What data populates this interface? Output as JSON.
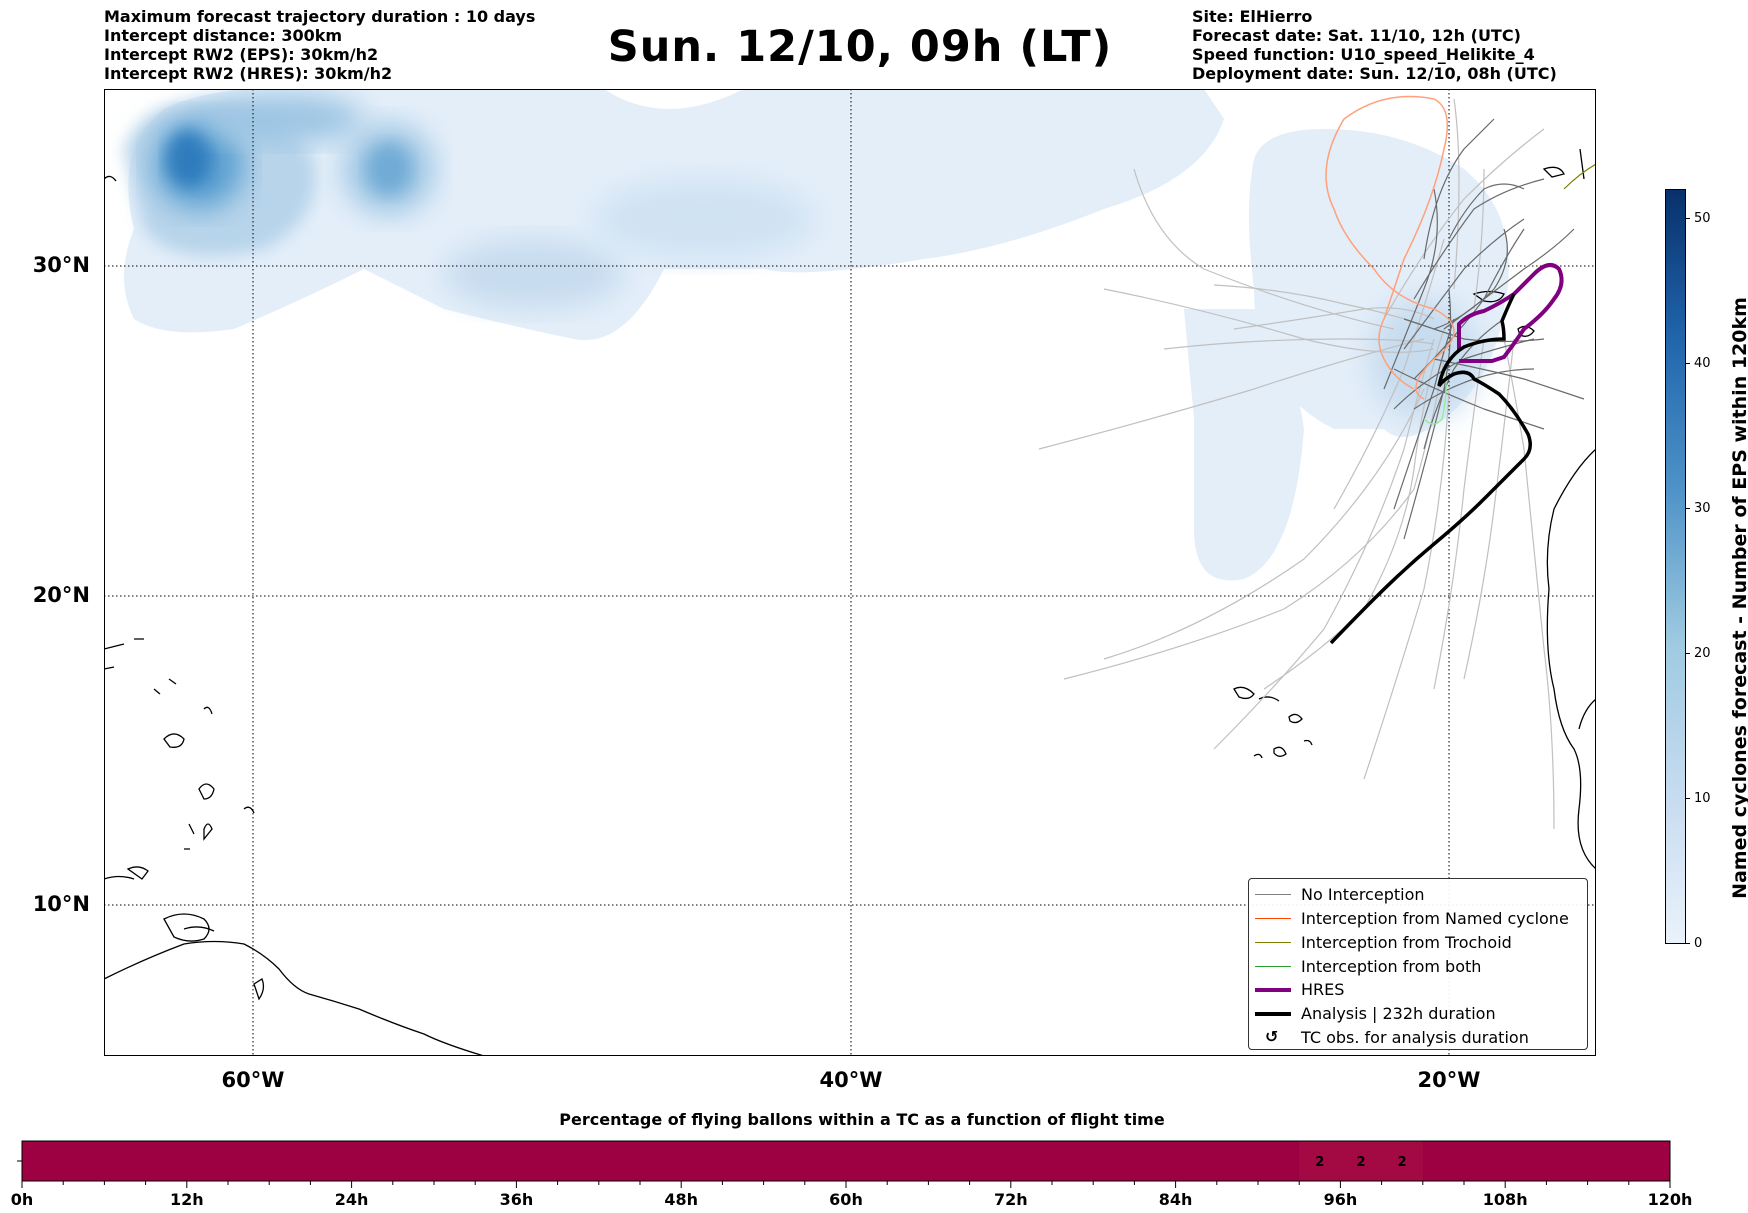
{
  "header_left": {
    "line1": "Maximum forecast trajectory duration : 10 days",
    "line2": "Intercept distance: 300km",
    "line3": "Intercept RW2 (EPS):  30km/h2",
    "line4": "Intercept RW2 (HRES): 30km/h2"
  },
  "title": "Sun. 12/10, 09h (LT)",
  "header_right": {
    "line1": "Site: ElHierro",
    "line2": "Forecast date: Sat. 11/10, 12h (UTC)",
    "line3": "Speed function: U10_speed_Helikite_4",
    "line4": "Deployment date: Sun. 12/10, 08h (UTC)"
  },
  "map": {
    "lat_labels": [
      "30°N",
      "20°N",
      "10°N"
    ],
    "lon_labels": [
      "60°W",
      "40°W",
      "20°W"
    ],
    "extent": {
      "lon_min": -65,
      "lon_max": -15,
      "lat_min": 5,
      "lat_max": 35.5
    }
  },
  "legend": {
    "items": [
      {
        "label": "No Interception",
        "color": "#808080"
      },
      {
        "label": "Interception from Named cyclone",
        "color": "#ff4500"
      },
      {
        "label": "Interception from Trochoid",
        "color": "#808000"
      },
      {
        "label": "Interception from both",
        "color": "#2ca02c"
      },
      {
        "label": "HRES",
        "color": "#800080"
      },
      {
        "label": "Analysis | 232h duration",
        "color": "#000000"
      },
      {
        "label": "TC obs. for analysis duration",
        "symbol": "↺"
      }
    ]
  },
  "colorbar": {
    "title": "Named cyclones forecast - Number of EPS within 120km",
    "ticks": [
      "50",
      "40",
      "30",
      "20",
      "10",
      "0"
    ],
    "tick_values": [
      50,
      40,
      30,
      20,
      10,
      0
    ],
    "min": 0,
    "max": 52,
    "color_low": "#e3eef9",
    "color_high": "#08306b"
  },
  "bottom_bar": {
    "title": "Percentage of flying ballons within a TC as a function of flight time",
    "time_labels": [
      "0h",
      "12h",
      "24h",
      "36h",
      "48h",
      "60h",
      "72h",
      "84h",
      "96h",
      "108h",
      "120h"
    ],
    "time_values": [
      0,
      12,
      24,
      36,
      48,
      60,
      72,
      84,
      96,
      108,
      120
    ],
    "cell_values": [
      "2",
      "2",
      "2"
    ],
    "cell_hours": [
      93,
      96,
      99
    ],
    "bar_color": "#9e0142"
  }
}
